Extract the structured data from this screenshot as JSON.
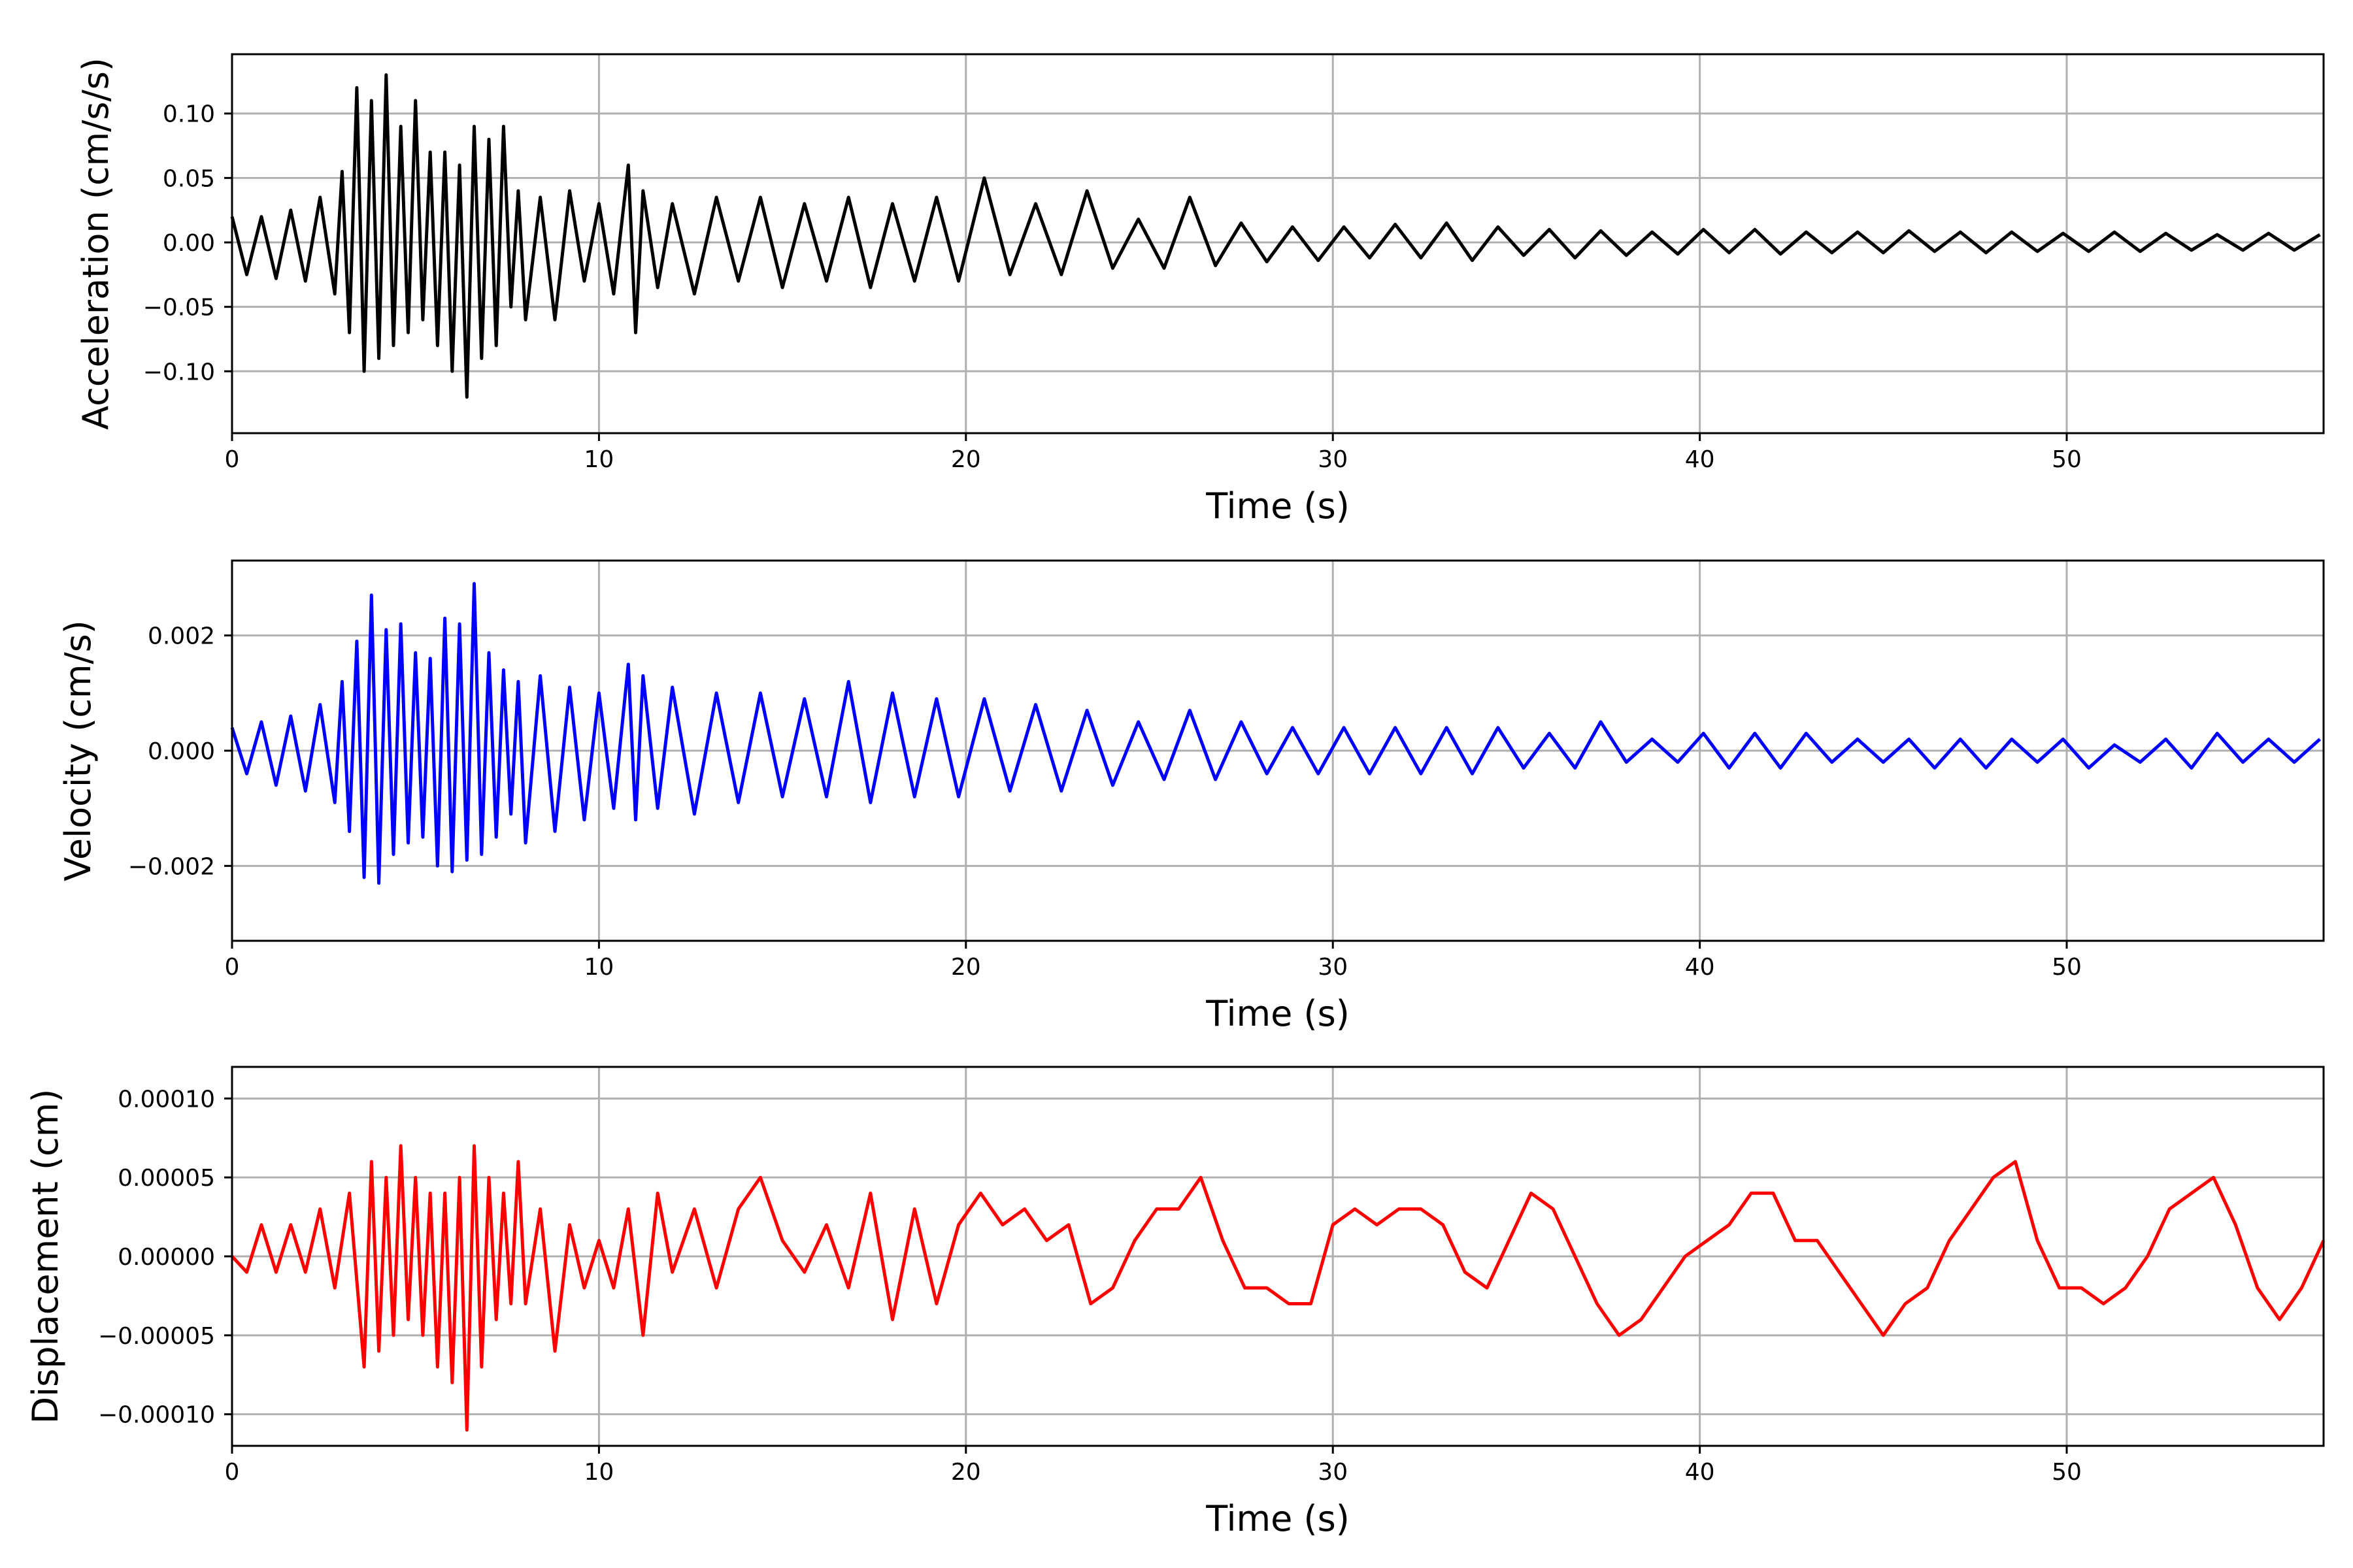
{
  "chart_data": [
    {
      "type": "line",
      "title": "",
      "xlabel": "Time (s)",
      "ylabel": "Acceleration (cm/s/s)",
      "xlim": [
        0,
        57
      ],
      "ylim": [
        -0.148,
        0.146
      ],
      "xticks": [
        0,
        10,
        20,
        30,
        40,
        50
      ],
      "xtick_labels": [
        "0",
        "10",
        "20",
        "30",
        "40",
        "50"
      ],
      "yticks": [
        0.1,
        0.05,
        0.0,
        -0.05,
        -0.1
      ],
      "ytick_labels": [
        "0.10",
        "0.05",
        "0.00",
        "−0.05",
        "−0.10"
      ],
      "grid": true,
      "color": "#000000",
      "series": [
        {
          "x": [
            0,
            0.4,
            0.8,
            1.2,
            1.6,
            2.0,
            2.4,
            2.8,
            3.0,
            3.2,
            3.4,
            3.6,
            3.8,
            4.0,
            4.2,
            4.4,
            4.6,
            4.8,
            5.0,
            5.2,
            5.4,
            5.6,
            5.8,
            6.0,
            6.2,
            6.4,
            6.6,
            6.8,
            7.0,
            7.2,
            7.4,
            7.6,
            7.8,
            8.0,
            8.4,
            8.8,
            9.2,
            9.6,
            10.0,
            10.4,
            10.8,
            11.0,
            11.2,
            11.6,
            12.0,
            12.6,
            13.2,
            13.8,
            14.4,
            15.0,
            15.6,
            16.2,
            16.8,
            17.4,
            18.0,
            18.6,
            19.2,
            19.8,
            20.5,
            21.2,
            21.9,
            22.6,
            23.3,
            24.0,
            24.7,
            25.4,
            26.1,
            26.8,
            27.5,
            28.2,
            28.9,
            29.6,
            30.3,
            31.0,
            31.7,
            32.4,
            33.1,
            33.8,
            34.5,
            35.2,
            35.9,
            36.6,
            37.3,
            38.0,
            38.7,
            39.4,
            40.1,
            40.8,
            41.5,
            42.2,
            42.9,
            43.6,
            44.3,
            45.0,
            45.7,
            46.4,
            47.1,
            47.8,
            48.5,
            49.2,
            49.9,
            50.6,
            51.3,
            52.0,
            52.7,
            53.4,
            54.1,
            54.8,
            55.5,
            56.2,
            56.9
          ],
          "y": [
            0.02,
            -0.025,
            0.02,
            -0.028,
            0.025,
            -0.03,
            0.035,
            -0.04,
            0.055,
            -0.07,
            0.12,
            -0.1,
            0.11,
            -0.09,
            0.13,
            -0.08,
            0.09,
            -0.07,
            0.11,
            -0.06,
            0.07,
            -0.08,
            0.07,
            -0.1,
            0.06,
            -0.12,
            0.09,
            -0.09,
            0.08,
            -0.08,
            0.09,
            -0.05,
            0.04,
            -0.06,
            0.035,
            -0.06,
            0.04,
            -0.03,
            0.03,
            -0.04,
            0.06,
            -0.07,
            0.04,
            -0.035,
            0.03,
            -0.04,
            0.035,
            -0.03,
            0.035,
            -0.035,
            0.03,
            -0.03,
            0.035,
            -0.035,
            0.03,
            -0.03,
            0.035,
            -0.03,
            0.05,
            -0.025,
            0.03,
            -0.025,
            0.04,
            -0.02,
            0.018,
            -0.02,
            0.035,
            -0.018,
            0.015,
            -0.015,
            0.012,
            -0.014,
            0.012,
            -0.012,
            0.014,
            -0.012,
            0.015,
            -0.014,
            0.012,
            -0.01,
            0.01,
            -0.012,
            0.009,
            -0.01,
            0.008,
            -0.009,
            0.01,
            -0.008,
            0.01,
            -0.009,
            0.008,
            -0.008,
            0.008,
            -0.008,
            0.009,
            -0.007,
            0.008,
            -0.008,
            0.008,
            -0.007,
            0.007,
            -0.007,
            0.008,
            -0.007,
            0.007,
            -0.006,
            0.006,
            -0.006,
            0.007,
            -0.006,
            0.006
          ]
        }
      ]
    },
    {
      "type": "line",
      "title": "",
      "xlabel": "Time (s)",
      "ylabel": "Velocity (cm/s)",
      "xlim": [
        0,
        57
      ],
      "ylim": [
        -0.0033,
        0.0033
      ],
      "xticks": [
        0,
        10,
        20,
        30,
        40,
        50
      ],
      "xtick_labels": [
        "0",
        "10",
        "20",
        "30",
        "40",
        "50"
      ],
      "yticks": [
        0.002,
        0.0,
        -0.002
      ],
      "ytick_labels": [
        "0.002",
        "0.000",
        "−0.002"
      ],
      "grid": true,
      "color": "#0000ff",
      "series": [
        {
          "x": [
            0,
            0.4,
            0.8,
            1.2,
            1.6,
            2.0,
            2.4,
            2.8,
            3.0,
            3.2,
            3.4,
            3.6,
            3.8,
            4.0,
            4.2,
            4.4,
            4.6,
            4.8,
            5.0,
            5.2,
            5.4,
            5.6,
            5.8,
            6.0,
            6.2,
            6.4,
            6.6,
            6.8,
            7.0,
            7.2,
            7.4,
            7.6,
            7.8,
            8.0,
            8.4,
            8.8,
            9.2,
            9.6,
            10.0,
            10.4,
            10.8,
            11.0,
            11.2,
            11.6,
            12.0,
            12.6,
            13.2,
            13.8,
            14.4,
            15.0,
            15.6,
            16.2,
            16.8,
            17.4,
            18.0,
            18.6,
            19.2,
            19.8,
            20.5,
            21.2,
            21.9,
            22.6,
            23.3,
            24.0,
            24.7,
            25.4,
            26.1,
            26.8,
            27.5,
            28.2,
            28.9,
            29.6,
            30.3,
            31.0,
            31.7,
            32.4,
            33.1,
            33.8,
            34.5,
            35.2,
            35.9,
            36.6,
            37.3,
            38.0,
            38.7,
            39.4,
            40.1,
            40.8,
            41.5,
            42.2,
            42.9,
            43.6,
            44.3,
            45.0,
            45.7,
            46.4,
            47.1,
            47.8,
            48.5,
            49.2,
            49.9,
            50.6,
            51.3,
            52.0,
            52.7,
            53.4,
            54.1,
            54.8,
            55.5,
            56.2,
            56.9
          ],
          "y": [
            0.0004,
            -0.0004,
            0.0005,
            -0.0006,
            0.0006,
            -0.0007,
            0.0008,
            -0.0009,
            0.0012,
            -0.0014,
            0.0019,
            -0.0022,
            0.0027,
            -0.0023,
            0.0021,
            -0.0018,
            0.0022,
            -0.0016,
            0.0017,
            -0.0015,
            0.0016,
            -0.002,
            0.0023,
            -0.0021,
            0.0022,
            -0.0019,
            0.0029,
            -0.0018,
            0.0017,
            -0.0015,
            0.0014,
            -0.0011,
            0.0012,
            -0.0016,
            0.0013,
            -0.0014,
            0.0011,
            -0.0012,
            0.001,
            -0.001,
            0.0015,
            -0.0012,
            0.0013,
            -0.001,
            0.0011,
            -0.0011,
            0.001,
            -0.0009,
            0.001,
            -0.0008,
            0.0009,
            -0.0008,
            0.0012,
            -0.0009,
            0.001,
            -0.0008,
            0.0009,
            -0.0008,
            0.0009,
            -0.0007,
            0.0008,
            -0.0007,
            0.0007,
            -0.0006,
            0.0005,
            -0.0005,
            0.0007,
            -0.0005,
            0.0005,
            -0.0004,
            0.0004,
            -0.0004,
            0.0004,
            -0.0004,
            0.0004,
            -0.0004,
            0.0004,
            -0.0004,
            0.0004,
            -0.0003,
            0.0003,
            -0.0003,
            0.0005,
            -0.0002,
            0.0002,
            -0.0002,
            0.0003,
            -0.0003,
            0.0003,
            -0.0003,
            0.0003,
            -0.0002,
            0.0002,
            -0.0002,
            0.0002,
            -0.0003,
            0.0002,
            -0.0003,
            0.0002,
            -0.0002,
            0.0002,
            -0.0003,
            0.0001,
            -0.0002,
            0.0002,
            -0.0003,
            0.0003,
            -0.0002,
            0.0002,
            -0.0002,
            0.0002
          ]
        }
      ]
    },
    {
      "type": "line",
      "title": "",
      "xlabel": "Time (s)",
      "ylabel": "Displacement (cm)",
      "xlim": [
        0,
        57
      ],
      "ylim": [
        -0.00012,
        0.00012
      ],
      "xticks": [
        0,
        10,
        20,
        30,
        40,
        50
      ],
      "xtick_labels": [
        "0",
        "10",
        "20",
        "30",
        "40",
        "50"
      ],
      "yticks": [
        0.0001,
        5e-05,
        0.0,
        -5e-05,
        -0.0001
      ],
      "ytick_labels": [
        "0.00010",
        "0.00005",
        "0.00000",
        "−0.00005",
        "−0.00010"
      ],
      "grid": true,
      "color": "#ff0000",
      "series": [
        {
          "x": [
            0,
            0.4,
            0.8,
            1.2,
            1.6,
            2.0,
            2.4,
            2.8,
            3.2,
            3.6,
            3.8,
            4.0,
            4.2,
            4.4,
            4.6,
            4.8,
            5.0,
            5.2,
            5.4,
            5.6,
            5.8,
            6.0,
            6.2,
            6.4,
            6.6,
            6.8,
            7.0,
            7.2,
            7.4,
            7.6,
            7.8,
            8.0,
            8.4,
            8.8,
            9.2,
            9.6,
            10.0,
            10.4,
            10.8,
            11.2,
            11.6,
            12.0,
            12.6,
            13.2,
            13.8,
            14.4,
            15.0,
            15.6,
            16.2,
            16.8,
            17.4,
            18.0,
            18.6,
            19.2,
            19.8,
            20.4,
            21.0,
            21.6,
            22.2,
            22.8,
            23.4,
            24.0,
            24.6,
            25.2,
            25.8,
            26.4,
            27.0,
            27.6,
            28.2,
            28.8,
            29.4,
            30.0,
            30.6,
            31.2,
            31.8,
            32.4,
            33.0,
            33.6,
            34.2,
            34.8,
            35.4,
            36.0,
            36.6,
            37.2,
            37.8,
            38.4,
            39.0,
            39.6,
            40.2,
            40.8,
            41.4,
            42.0,
            42.6,
            43.2,
            43.8,
            44.4,
            45.0,
            45.6,
            46.2,
            46.8,
            47.4,
            48.0,
            48.6,
            49.2,
            49.8,
            50.4,
            51.0,
            51.6,
            52.2,
            52.8,
            53.4,
            54.0,
            54.6,
            55.2,
            55.8,
            56.4,
            57.0
          ],
          "y": [
            0.0,
            -1e-05,
            2e-05,
            -1e-05,
            2e-05,
            -1e-05,
            3e-05,
            -2e-05,
            4e-05,
            -7e-05,
            6e-05,
            -6e-05,
            5e-05,
            -5e-05,
            7e-05,
            -4e-05,
            5e-05,
            -5e-05,
            4e-05,
            -7e-05,
            4e-05,
            -8e-05,
            5e-05,
            -0.00011,
            7e-05,
            -7e-05,
            5e-05,
            -4e-05,
            4e-05,
            -3e-05,
            6e-05,
            -3e-05,
            3e-05,
            -6e-05,
            2e-05,
            -2e-05,
            1e-05,
            -2e-05,
            3e-05,
            -5e-05,
            4e-05,
            -1e-05,
            3e-05,
            -2e-05,
            3e-05,
            5e-05,
            1e-05,
            -1e-05,
            2e-05,
            -2e-05,
            4e-05,
            -4e-05,
            3e-05,
            -3e-05,
            2e-05,
            4e-05,
            2e-05,
            3e-05,
            1e-05,
            2e-05,
            -3e-05,
            -2e-05,
            1e-05,
            3e-05,
            3e-05,
            5e-05,
            1e-05,
            -2e-05,
            -2e-05,
            -3e-05,
            -3e-05,
            2e-05,
            3e-05,
            2e-05,
            3e-05,
            3e-05,
            2e-05,
            -1e-05,
            -2e-05,
            1e-05,
            4e-05,
            3e-05,
            0.0,
            -3e-05,
            -5e-05,
            -4e-05,
            -2e-05,
            0.0,
            1e-05,
            2e-05,
            4e-05,
            4e-05,
            1e-05,
            1e-05,
            -1e-05,
            -3e-05,
            -5e-05,
            -3e-05,
            -2e-05,
            1e-05,
            3e-05,
            5e-05,
            6e-05,
            1e-05,
            -2e-05,
            -2e-05,
            -3e-05,
            -2e-05,
            0.0,
            3e-05,
            4e-05,
            5e-05,
            2e-05,
            -2e-05,
            -4e-05,
            -2e-05,
            1e-05
          ]
        }
      ]
    }
  ]
}
